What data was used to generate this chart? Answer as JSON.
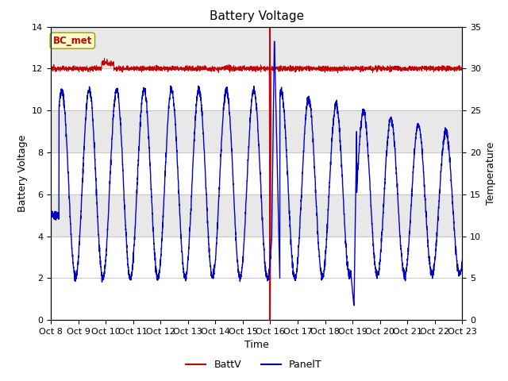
{
  "title": "Battery Voltage",
  "xlabel": "Time",
  "ylabel_left": "Battery Voltage",
  "ylabel_right": "Temperature",
  "ylim_left": [
    0,
    14
  ],
  "ylim_right": [
    0,
    35
  ],
  "yticks_left": [
    0,
    2,
    4,
    6,
    8,
    10,
    12,
    14
  ],
  "yticks_right": [
    0,
    5,
    10,
    15,
    20,
    25,
    30,
    35
  ],
  "xtick_labels": [
    "Oct 8",
    "Oct 9",
    "Oct 10",
    "Oct 11",
    "Oct 12",
    "Oct 13",
    "Oct 14",
    "Oct 15",
    "Oct 16",
    "Oct 17",
    "Oct 18",
    "Oct 19",
    "Oct 20",
    "Oct 21",
    "Oct 22",
    "Oct 23"
  ],
  "bc_met_label": "BC_met",
  "bc_met_color": "#cc0000",
  "bc_met_bg": "#ffffcc",
  "legend_batt_label": "BattV",
  "legend_panel_label": "PanelT",
  "batt_color": "#cc0000",
  "panel_color": "#0000cc",
  "vline_color": "#cc0000",
  "bg_color": "#ffffff",
  "grid_color": "#bbbbbb",
  "band_color": "#e8e8e8",
  "title_fontsize": 11,
  "axis_label_fontsize": 9,
  "tick_fontsize": 8,
  "band_ranges": [
    [
      4,
      6
    ],
    [
      8,
      10
    ],
    [
      12,
      14
    ]
  ]
}
